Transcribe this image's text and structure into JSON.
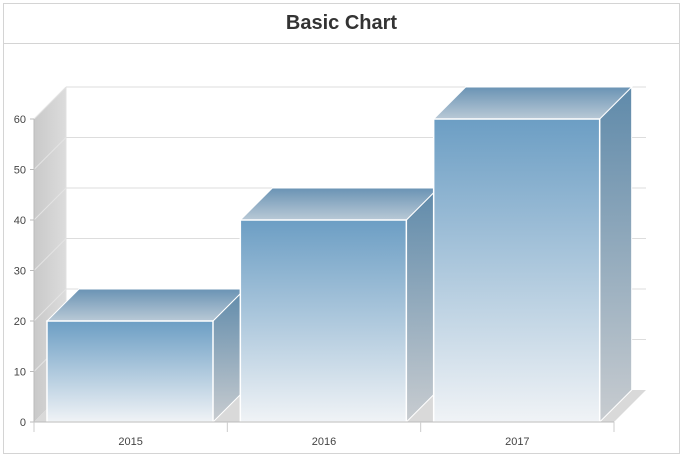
{
  "chart_data": {
    "type": "bar",
    "title": "Basic Chart",
    "categories": [
      "2015",
      "2016",
      "2017"
    ],
    "values": [
      20,
      40,
      60
    ],
    "ylim": [
      0,
      60
    ],
    "yticks": [
      0,
      10,
      20,
      30,
      40,
      50,
      60
    ],
    "grid": true,
    "legend": "none",
    "style": "3d-column"
  },
  "colors": {
    "bar_top": "#6c9ec4",
    "bar_bottom": "#f0f3f6",
    "side_top": "#5f8aaa",
    "side_bottom": "#c8ccd0",
    "wall": "#cccccc",
    "floor": "#d9d9d9",
    "grid": "#dddddd"
  }
}
